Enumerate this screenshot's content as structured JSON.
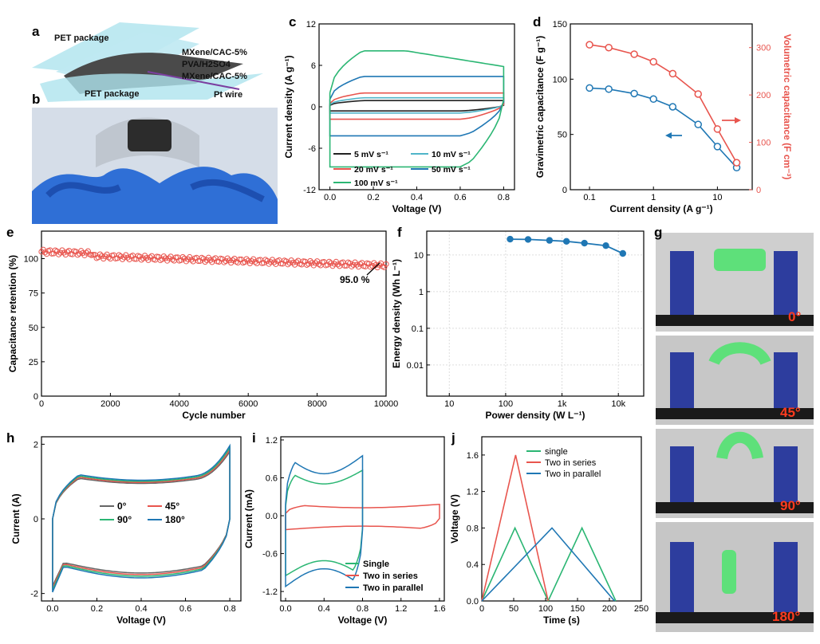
{
  "colors": {
    "red": "#e8554e",
    "blue": "#1f77b4",
    "green": "#2bb673",
    "black": "#222222",
    "lightblue": "#4fb5c9",
    "angle_red": "#ff3b1f"
  },
  "panel_a": {
    "label": "a",
    "layers": [
      "PET package",
      "MXene/CAC-5%",
      "PVA/H2SO4",
      "MXene/CAC-5%",
      "PET package",
      "Pt wire"
    ]
  },
  "panel_b": {
    "label": "b"
  },
  "panel_g": {
    "label": "g",
    "angles": [
      "0°",
      "45°",
      "90°",
      "180°"
    ]
  },
  "chart_data": [
    {
      "id": "c",
      "type": "line",
      "label": "c",
      "xlabel": "Voltage (V)",
      "ylabel": "Current density (A g-1)",
      "xlim": [
        -0.05,
        0.85
      ],
      "ylim": [
        -12,
        12
      ],
      "xticks": [
        "0.0",
        "0.2",
        "0.4",
        "0.6",
        "0.8"
      ],
      "yticks": [
        "-12",
        "-6",
        "0",
        "6",
        "12"
      ],
      "series": [
        {
          "name": "5 mV s-1",
          "top": 0.9,
          "bottom": -0.6
        },
        {
          "name": "10 mV s-1",
          "top": 1.3,
          "bottom": -0.9
        },
        {
          "name": "20 mV s-1",
          "top": 2.0,
          "bottom": -1.8
        },
        {
          "name": "50 mV s-1",
          "top": 4.4,
          "bottom": -4.2
        },
        {
          "name": "100 mV s-1",
          "top": 8.1,
          "bottom": -8.7
        }
      ]
    },
    {
      "id": "d",
      "type": "line",
      "label": "d",
      "xlabel": "Current density (A g-1)",
      "ylabel": "Gravimetric capacitance (F g-1)",
      "y2label": "Volumetric capacitance (F cm-3)",
      "x": [
        0.1,
        0.2,
        0.5,
        1,
        2,
        5,
        10,
        20
      ],
      "xticks": [
        "0.1",
        "1",
        "10"
      ],
      "yticks": [
        "0",
        "50",
        "100",
        "150"
      ],
      "y2ticks": [
        "0",
        "100",
        "200",
        "300"
      ],
      "ylim": [
        0,
        150
      ],
      "y2lim": [
        0,
        350
      ],
      "series": [
        {
          "name": "Gravimetric",
          "values": [
            92,
            91,
            87,
            82,
            75,
            59,
            39,
            20
          ]
        },
        {
          "name": "Volumetric",
          "values": [
            306,
            300,
            286,
            270,
            245,
            202,
            128,
            57
          ]
        }
      ]
    },
    {
      "id": "e",
      "type": "scatter",
      "label": "e",
      "xlabel": "Cycle number",
      "ylabel": "Capacitance retention (%)",
      "xlim": [
        0,
        10000
      ],
      "ylim": [
        0,
        120
      ],
      "xticks": [
        "0",
        "2000",
        "4000",
        "6000",
        "8000",
        "10000"
      ],
      "yticks": [
        "0",
        "25",
        "50",
        "75",
        "100"
      ],
      "annotation": "95.0 %",
      "start": 103,
      "end": 95
    },
    {
      "id": "f",
      "type": "line",
      "label": "f",
      "xlabel": "Power density (W L-1)",
      "ylabel": "Energy density (Wh L-1)",
      "xticks": [
        "10",
        "100",
        "1k",
        "10k"
      ],
      "yticks": [
        "0.01",
        "0.1",
        "1",
        "10"
      ],
      "x": [
        120,
        250,
        600,
        1200,
        2500,
        6000,
        12000
      ],
      "values": [
        27,
        26.5,
        25,
        23.5,
        21,
        18,
        11
      ]
    },
    {
      "id": "h",
      "type": "line",
      "label": "h",
      "xlabel": "Voltage (V)",
      "ylabel": "Current (A)",
      "xlim": [
        -0.05,
        0.85
      ],
      "ylim": [
        -2.2,
        2.2
      ],
      "xticks": [
        "0.0",
        "0.2",
        "0.4",
        "0.6",
        "0.8"
      ],
      "yticks": [
        "-2",
        "0",
        "2"
      ],
      "series": [
        {
          "name": "0°"
        },
        {
          "name": "45°"
        },
        {
          "name": "90°"
        },
        {
          "name": "180°"
        }
      ]
    },
    {
      "id": "i",
      "type": "line",
      "label": "i",
      "xlabel": "Voltage (V)",
      "ylabel": "Current (mA)",
      "xlim": [
        -0.05,
        1.65
      ],
      "ylim": [
        -1.35,
        1.25
      ],
      "xticks": [
        "0.0",
        "0.4",
        "0.8",
        "1.2",
        "1.6"
      ],
      "yticks": [
        "-1.2",
        "-0.6",
        "0.0",
        "0.6",
        "1.2"
      ],
      "series": [
        {
          "name": "Single"
        },
        {
          "name": "Two in series"
        },
        {
          "name": "Two in parallel"
        }
      ]
    },
    {
      "id": "j",
      "type": "line",
      "label": "j",
      "xlabel": "Time (s)",
      "ylabel": "Voltage (V)",
      "xlim": [
        0,
        250
      ],
      "ylim": [
        0,
        1.8
      ],
      "xticks": [
        "0",
        "50",
        "100",
        "150",
        "200",
        "250"
      ],
      "yticks": [
        "0.0",
        "0.4",
        "0.8",
        "1.2",
        "1.6"
      ],
      "series": [
        {
          "name": "single",
          "points": [
            [
              0,
              0
            ],
            [
              52,
              0.8
            ],
            [
              104,
              0
            ],
            [
              157,
              0.8
            ],
            [
              210,
              0
            ]
          ]
        },
        {
          "name": "Two in series",
          "points": [
            [
              0,
              0
            ],
            [
              53,
              1.6
            ],
            [
              104,
              0
            ]
          ]
        },
        {
          "name": "Two in parallel",
          "points": [
            [
              0,
              0
            ],
            [
              110,
              0.8
            ],
            [
              208,
              0
            ]
          ]
        }
      ]
    }
  ]
}
